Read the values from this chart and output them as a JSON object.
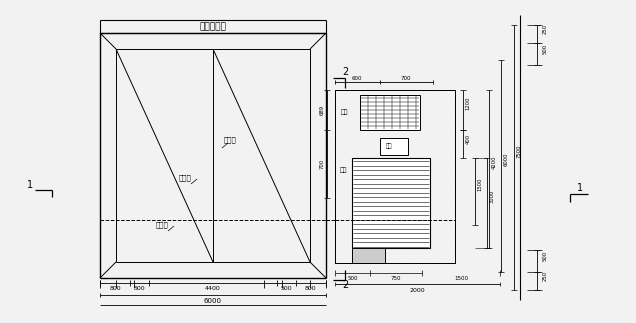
{
  "bg_color": "#f2f2f2",
  "line_color": "#000000",
  "title_text": "混凝土道路",
  "label_pai_shui_gou": "排水渠",
  "label_pai_shui_guan": "排水管",
  "label_na_fei_dao": "纳飞道",
  "dim_800L": "800",
  "dim_500L": "500",
  "dim_4400": "4400",
  "dim_500R": "500",
  "dim_800R": "800",
  "dim_6000": "6000",
  "dim_600": "600",
  "dim_700": "700",
  "dim_500_top": "500",
  "dim_250_top": "250",
  "dim_250_bot": "250",
  "dim_500_bot": "500",
  "dim_689": "689",
  "dim_700v": "700",
  "dim_400": "400",
  "dim_1200": "1200",
  "dim_500m": "500",
  "dim_750": "750",
  "dim_1500": "1500",
  "dim_3000": "3000",
  "dim_4200": "4200",
  "dim_6000r": "6000",
  "dim_7500": "7500",
  "dim_2000": "2000",
  "label_guanjie": "管节",
  "label_lianhe": "连尔",
  "label_shuijing": "水井"
}
